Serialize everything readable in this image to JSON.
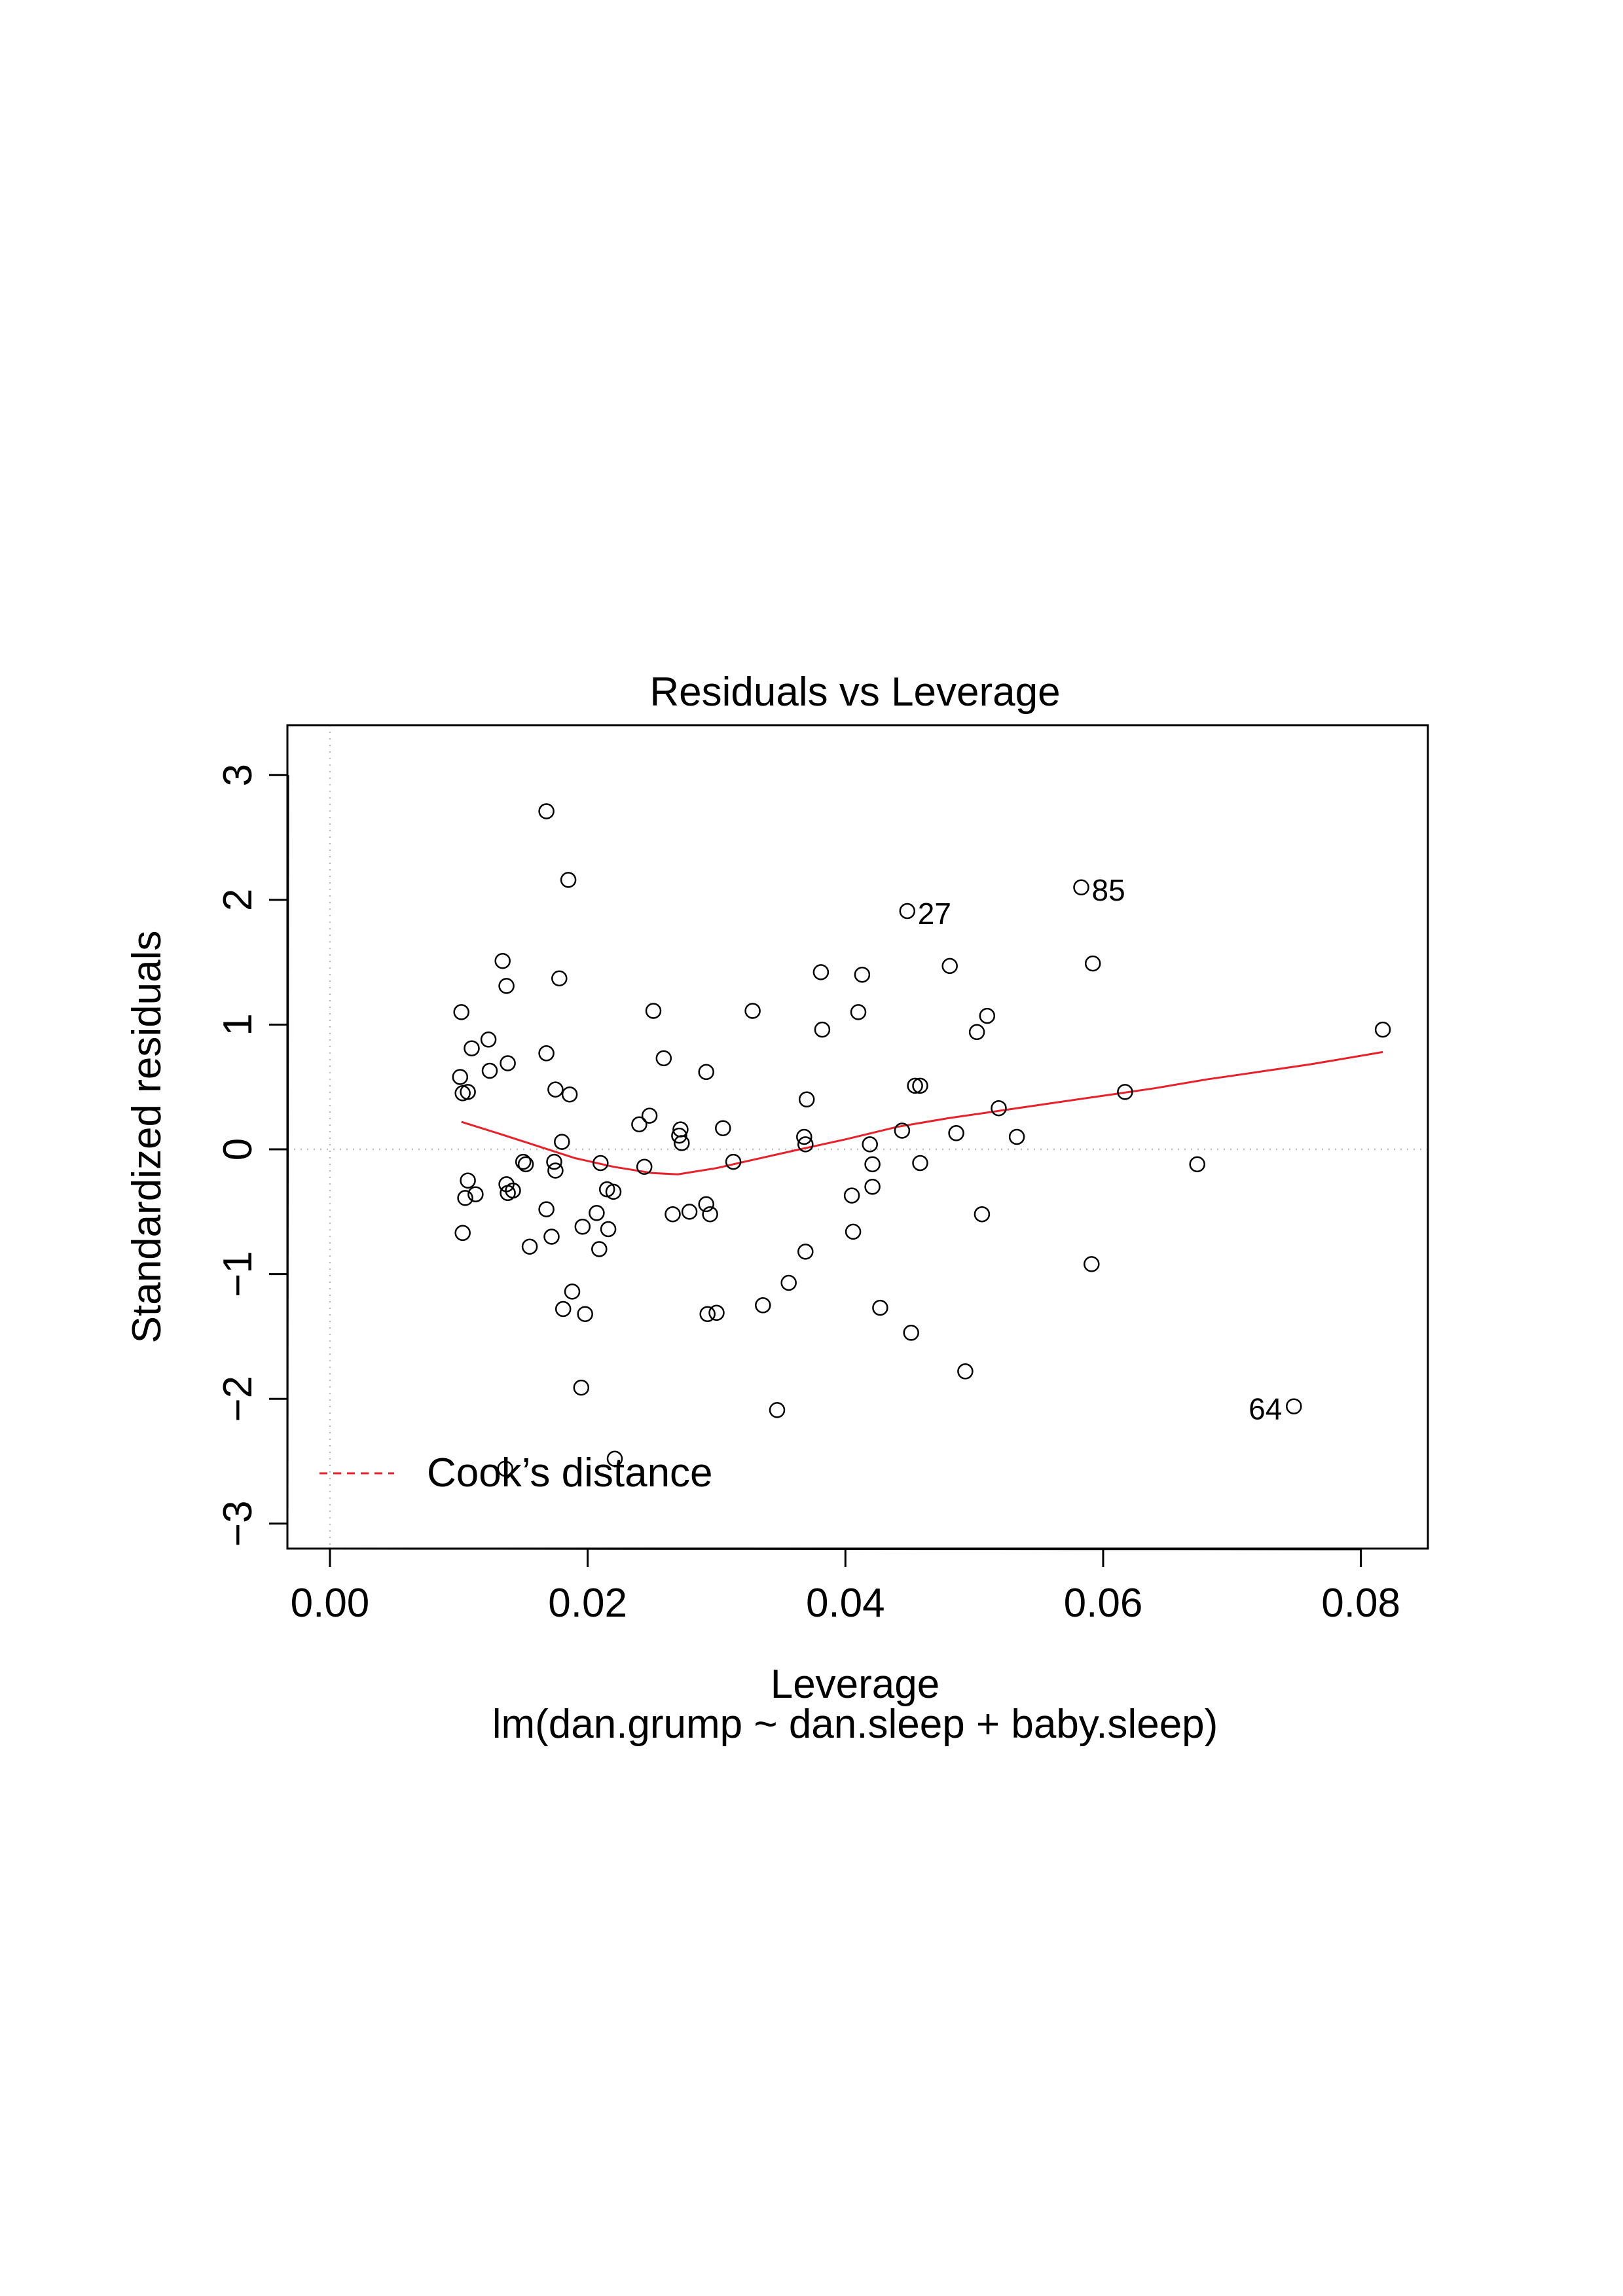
{
  "chart_data": {
    "type": "scatter",
    "title": "Residuals vs Leverage",
    "xlabel": "Leverage",
    "ylabel": "Standardized residuals",
    "subtitle": "lm(dan.grump ~ dan.sleep + baby.sleep)",
    "xlim": [
      -0.0033,
      0.0852
    ],
    "ylim": [
      -3.2,
      3.4
    ],
    "x_ticks": [
      "0.00",
      "0.02",
      "0.04",
      "0.06",
      "0.08"
    ],
    "x_tick_values": [
      0.0,
      0.02,
      0.04,
      0.06,
      0.08
    ],
    "y_ticks": [
      "−3",
      "−2",
      "−1",
      "0",
      "1",
      "2",
      "3"
    ],
    "y_tick_values": [
      -3,
      -2,
      -1,
      0,
      1,
      2,
      3
    ],
    "reference_lines": {
      "x": 0,
      "y": 0,
      "style": "dotted",
      "color": "#bfbfbf"
    },
    "legend": {
      "placement": "bottom-left",
      "entries": [
        {
          "label": "Cook’s distance",
          "style": "dashed",
          "color": "#e8202a"
        }
      ]
    },
    "point_color": "#000000",
    "smooth_color": "#e8202a",
    "points": [
      [
        0.0168,
        2.71
      ],
      [
        0.0185,
        2.16
      ],
      [
        0.0448,
        1.91
      ],
      [
        0.0583,
        2.1
      ],
      [
        0.0592,
        1.49
      ],
      [
        0.0134,
        1.51
      ],
      [
        0.0137,
        1.31
      ],
      [
        0.0178,
        1.37
      ],
      [
        0.0381,
        1.42
      ],
      [
        0.0413,
        1.4
      ],
      [
        0.0481,
        1.47
      ],
      [
        0.0102,
        1.1
      ],
      [
        0.0251,
        1.11
      ],
      [
        0.0328,
        1.11
      ],
      [
        0.041,
        1.1
      ],
      [
        0.051,
        1.07
      ],
      [
        0.0123,
        0.88
      ],
      [
        0.011,
        0.81
      ],
      [
        0.0382,
        0.96
      ],
      [
        0.0502,
        0.94
      ],
      [
        0.0817,
        0.96
      ],
      [
        0.0138,
        0.69
      ],
      [
        0.0168,
        0.77
      ],
      [
        0.0259,
        0.73
      ],
      [
        0.0101,
        0.58
      ],
      [
        0.0124,
        0.63
      ],
      [
        0.0292,
        0.62
      ],
      [
        0.0103,
        0.45
      ],
      [
        0.0107,
        0.46
      ],
      [
        0.0175,
        0.48
      ],
      [
        0.0186,
        0.44
      ],
      [
        0.0454,
        0.51
      ],
      [
        0.0458,
        0.51
      ],
      [
        0.037,
        0.4
      ],
      [
        0.0617,
        0.46
      ],
      [
        0.0248,
        0.27
      ],
      [
        0.024,
        0.2
      ],
      [
        0.0271,
        0.11
      ],
      [
        0.0272,
        0.16
      ],
      [
        0.0273,
        0.05
      ],
      [
        0.0305,
        0.17
      ],
      [
        0.0368,
        0.1
      ],
      [
        0.0369,
        0.04
      ],
      [
        0.0444,
        0.15
      ],
      [
        0.0486,
        0.13
      ],
      [
        0.0519,
        0.33
      ],
      [
        0.0533,
        0.1
      ],
      [
        0.018,
        0.06
      ],
      [
        0.0419,
        0.04
      ],
      [
        0.015,
        -0.1
      ],
      [
        0.0152,
        -0.12
      ],
      [
        0.0174,
        -0.1
      ],
      [
        0.0175,
        -0.17
      ],
      [
        0.021,
        -0.11
      ],
      [
        0.0244,
        -0.14
      ],
      [
        0.0313,
        -0.1
      ],
      [
        0.0421,
        -0.12
      ],
      [
        0.0458,
        -0.11
      ],
      [
        0.0673,
        -0.12
      ],
      [
        0.0107,
        -0.25
      ],
      [
        0.0113,
        -0.36
      ],
      [
        0.0105,
        -0.39
      ],
      [
        0.0137,
        -0.28
      ],
      [
        0.0138,
        -0.35
      ],
      [
        0.0142,
        -0.33
      ],
      [
        0.0215,
        -0.32
      ],
      [
        0.022,
        -0.34
      ],
      [
        0.0405,
        -0.37
      ],
      [
        0.0421,
        -0.3
      ],
      [
        0.0168,
        -0.48
      ],
      [
        0.0207,
        -0.51
      ],
      [
        0.0266,
        -0.52
      ],
      [
        0.0279,
        -0.5
      ],
      [
        0.0292,
        -0.44
      ],
      [
        0.0295,
        -0.52
      ],
      [
        0.0506,
        -0.52
      ],
      [
        0.0103,
        -0.67
      ],
      [
        0.0172,
        -0.7
      ],
      [
        0.0196,
        -0.62
      ],
      [
        0.0216,
        -0.64
      ],
      [
        0.0155,
        -0.78
      ],
      [
        0.0209,
        -0.8
      ],
      [
        0.0369,
        -0.82
      ],
      [
        0.0406,
        -0.66
      ],
      [
        0.0591,
        -0.92
      ],
      [
        0.0188,
        -1.14
      ],
      [
        0.0181,
        -1.28
      ],
      [
        0.0198,
        -1.32
      ],
      [
        0.0293,
        -1.32
      ],
      [
        0.03,
        -1.31
      ],
      [
        0.0336,
        -1.25
      ],
      [
        0.0356,
        -1.07
      ],
      [
        0.0427,
        -1.27
      ],
      [
        0.0451,
        -1.47
      ],
      [
        0.0493,
        -1.78
      ],
      [
        0.0195,
        -1.91
      ],
      [
        0.0347,
        -2.09
      ],
      [
        0.0748,
        -2.06
      ],
      [
        0.0221,
        -2.48
      ],
      [
        0.0136,
        -2.56
      ]
    ],
    "labeled_points": [
      {
        "label": "27",
        "x": 0.0448,
        "y": 1.91
      },
      {
        "label": "85",
        "x": 0.0583,
        "y": 2.1
      },
      {
        "label": "64",
        "x": 0.0748,
        "y": -2.06
      }
    ],
    "smooth_line": {
      "x": [
        0.0102,
        0.013,
        0.016,
        0.019,
        0.022,
        0.025,
        0.027,
        0.03,
        0.033,
        0.036,
        0.04,
        0.044,
        0.048,
        0.052,
        0.056,
        0.06,
        0.064,
        0.068,
        0.072,
        0.076,
        0.0817
      ],
      "y": [
        0.22,
        0.13,
        0.03,
        -0.07,
        -0.14,
        -0.19,
        -0.2,
        -0.15,
        -0.08,
        -0.01,
        0.08,
        0.18,
        0.25,
        0.31,
        0.37,
        0.43,
        0.49,
        0.56,
        0.62,
        0.68,
        0.78
      ]
    }
  }
}
